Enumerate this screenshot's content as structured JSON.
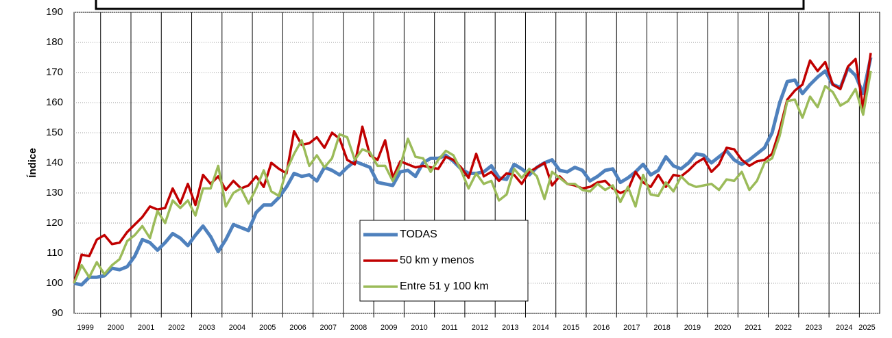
{
  "chart_data": {
    "type": "line",
    "y_label": "Índice",
    "categories": [
      "1999",
      null,
      null,
      null,
      "2000",
      null,
      null,
      null,
      "2001",
      null,
      null,
      null,
      "2002",
      null,
      null,
      null,
      "2003",
      null,
      null,
      null,
      "2004",
      null,
      null,
      null,
      "2005",
      null,
      null,
      null,
      "2006",
      null,
      null,
      null,
      "2007",
      null,
      null,
      null,
      "2008",
      null,
      null,
      null,
      "2009",
      null,
      null,
      null,
      "2010",
      null,
      null,
      null,
      "2011",
      null,
      null,
      null,
      "2012",
      null,
      null,
      null,
      "2013",
      null,
      null,
      null,
      "2014",
      null,
      null,
      null,
      "2015",
      null,
      null,
      null,
      "2016",
      null,
      null,
      null,
      "2017",
      null,
      null,
      null,
      "2018",
      null,
      null,
      null,
      "2019",
      null,
      null,
      null,
      "2020",
      null,
      null,
      null,
      "2021",
      null,
      null,
      null,
      "2022",
      null,
      null,
      null,
      "2023",
      null,
      null,
      null,
      "2024",
      null,
      null,
      null,
      "2025",
      null
    ],
    "series": [
      {
        "name": "TODAS",
        "color": "#4f81bd",
        "width": 5,
        "values": [
          100,
          99.5,
          102,
          102,
          102.5,
          105,
          104.5,
          105.5,
          109,
          114.5,
          113.5,
          111,
          113.5,
          116.5,
          115,
          112.5,
          116,
          119,
          115.5,
          110.5,
          114.5,
          119.5,
          118.5,
          117.5,
          123.5,
          126,
          126,
          128.5,
          132,
          136.5,
          135.5,
          136,
          134,
          138.5,
          137.5,
          136,
          138.5,
          140.5,
          139.5,
          138.5,
          133.5,
          133,
          132.5,
          137,
          137.5,
          135.5,
          140,
          141.5,
          141.5,
          142.5,
          140.5,
          138,
          136.5,
          136.5,
          137,
          139,
          135,
          134.5,
          139.5,
          138,
          136,
          138.5,
          140,
          141,
          137.5,
          137,
          138.5,
          137.5,
          134,
          135.5,
          137.5,
          138,
          133.5,
          135,
          137,
          139.5,
          136,
          137.5,
          142,
          139,
          138,
          140,
          143,
          142.5,
          140,
          142,
          144,
          141,
          139.5,
          141,
          143,
          145,
          150,
          160,
          167,
          167.5,
          163,
          166,
          168.5,
          170.5,
          166,
          165,
          171.5,
          169,
          163,
          175
        ]
      },
      {
        "name": "50 km y menos",
        "color": "#c00000",
        "width": 3.5,
        "values": [
          100,
          109.5,
          109,
          114.5,
          116,
          113,
          113.5,
          117,
          119.5,
          122,
          125.5,
          124.5,
          125,
          131.5,
          126.5,
          133,
          126,
          136,
          133,
          135.5,
          131,
          134,
          131.5,
          132.5,
          135.5,
          132,
          140,
          138,
          136.5,
          150.5,
          146,
          146.5,
          148.5,
          145,
          150,
          148,
          141,
          139.5,
          152,
          142.5,
          141,
          147.5,
          135,
          140.5,
          139.5,
          138.5,
          139,
          138.5,
          138,
          142,
          141,
          138.5,
          135,
          143,
          135.5,
          137,
          134,
          136.5,
          136,
          133,
          137,
          138.5,
          140,
          132.5,
          135.5,
          133,
          132.5,
          131.5,
          132,
          133.5,
          134,
          131.5,
          130,
          131,
          137,
          133.5,
          132,
          136,
          132,
          136,
          135.5,
          137.5,
          140,
          141.5,
          137,
          139.5,
          145,
          144.5,
          141,
          139,
          140.5,
          141,
          143,
          151,
          161,
          164,
          166,
          174,
          170.5,
          173.5,
          166,
          164.5,
          172,
          174.5,
          158,
          176.5
        ]
      },
      {
        "name": "Entre 51 y 100 km",
        "color": "#9bbb59",
        "width": 3.5,
        "values": [
          100,
          106,
          102,
          107,
          103,
          106,
          108,
          114,
          116,
          119,
          115,
          124,
          120,
          127.5,
          125,
          127.5,
          122.5,
          131.5,
          131.5,
          139,
          125.5,
          130,
          131.5,
          126.5,
          131.5,
          137.5,
          130.5,
          129,
          137.5,
          143,
          147.5,
          139,
          142.5,
          138.5,
          141.5,
          149.5,
          148.5,
          141,
          144.5,
          143.5,
          139,
          139,
          134,
          139,
          148,
          142,
          141.5,
          137,
          141,
          144,
          142.5,
          137.5,
          131.5,
          136.5,
          133,
          134,
          127.5,
          129.5,
          138,
          135,
          138,
          135.5,
          128,
          137,
          135,
          133,
          133,
          131,
          130.5,
          133,
          131,
          132.5,
          127,
          132,
          125.5,
          136,
          129.5,
          129,
          133.5,
          130.5,
          135.5,
          133,
          132,
          132.5,
          133,
          131,
          134.5,
          134,
          137,
          131,
          134,
          140,
          141.5,
          149,
          160.5,
          161,
          155,
          162,
          158.5,
          165.5,
          163.5,
          159,
          160.5,
          164.5,
          156,
          170.5
        ]
      }
    ],
    "ylim": [
      90,
      190
    ],
    "yticks": [
      90,
      100,
      110,
      120,
      130,
      140,
      150,
      160,
      170,
      180,
      190
    ],
    "grid": true,
    "legend": "center"
  }
}
